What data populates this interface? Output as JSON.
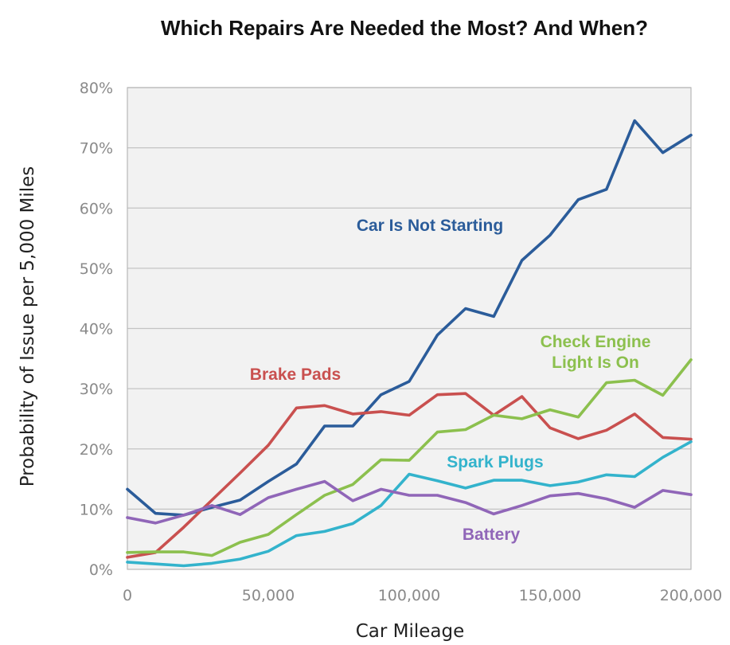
{
  "chart_data": {
    "type": "line",
    "title": "Which Repairs Are Needed the Most? And When?",
    "xlabel": "Car Mileage",
    "ylabel": "Probability of Issue per 5,000 Miles",
    "x": [
      0,
      10000,
      20000,
      30000,
      40000,
      50000,
      60000,
      70000,
      80000,
      90000,
      100000,
      110000,
      120000,
      130000,
      140000,
      150000,
      160000,
      170000,
      180000,
      190000,
      200000
    ],
    "xlim": [
      0,
      200000
    ],
    "ylim": [
      0,
      80
    ],
    "x_ticks": [
      "0",
      "50,000",
      "100,000",
      "150,000",
      "200,000"
    ],
    "y_ticks": [
      "0%",
      "10%",
      "20%",
      "30%",
      "40%",
      "50%",
      "60%",
      "70%",
      "80%"
    ],
    "grid": "horizontal",
    "series": [
      {
        "name": "Car Is Not Starting",
        "color": "#2b5c9a",
        "label_lines": [
          "Car Is Not Starting"
        ],
        "values": [
          13.3,
          9.3,
          9.0,
          10.3,
          11.5,
          14.6,
          17.5,
          23.8,
          23.8,
          29.0,
          31.2,
          38.9,
          43.3,
          42.0,
          51.3,
          55.5,
          61.4,
          63.1,
          74.5,
          69.2,
          72.1
        ]
      },
      {
        "name": "Brake Pads",
        "color": "#c9504f",
        "label_lines": [
          "Brake Pads"
        ],
        "values": [
          2.0,
          2.8,
          7.0,
          11.5,
          16.0,
          20.6,
          26.8,
          27.2,
          25.8,
          26.2,
          25.6,
          29.0,
          29.2,
          25.6,
          28.7,
          23.5,
          21.7,
          23.1,
          25.8,
          21.9,
          21.6
        ]
      },
      {
        "name": "Check Engine Light Is On",
        "color": "#8cc04e",
        "label_lines": [
          "Check Engine",
          "Light Is On"
        ],
        "values": [
          2.8,
          2.9,
          2.9,
          2.3,
          4.5,
          5.8,
          9.1,
          12.3,
          14.1,
          18.2,
          18.1,
          22.8,
          23.2,
          25.6,
          25.0,
          26.5,
          25.3,
          31.0,
          31.4,
          28.9,
          34.8
        ]
      },
      {
        "name": "Spark Plugs",
        "color": "#33b3cc",
        "label_lines": [
          "Spark Plugs"
        ],
        "values": [
          1.2,
          0.9,
          0.6,
          1.0,
          1.7,
          3.0,
          5.6,
          6.3,
          7.6,
          10.6,
          15.8,
          14.7,
          13.5,
          14.8,
          14.8,
          13.9,
          14.5,
          15.7,
          15.4,
          18.6,
          21.2
        ]
      },
      {
        "name": "Battery",
        "color": "#9066b8",
        "label_lines": [
          "Battery"
        ],
        "values": [
          8.6,
          7.7,
          9.0,
          10.6,
          9.1,
          11.9,
          13.3,
          14.6,
          11.4,
          13.3,
          12.3,
          12.3,
          11.1,
          9.2,
          10.6,
          12.2,
          12.6,
          11.7,
          10.3,
          13.1,
          12.4
        ]
      }
    ]
  }
}
